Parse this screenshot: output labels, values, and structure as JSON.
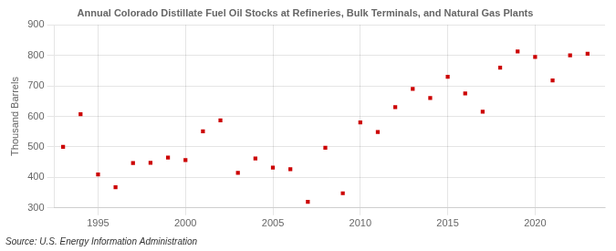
{
  "chart_data": {
    "type": "scatter",
    "title": "Annual Colorado Distillate Fuel Oil Stocks at Refineries, Bulk Terminals, and Natural Gas Plants",
    "ylabel": "Thousand Barrels",
    "source": "Source: U.S. Energy Information Administration",
    "x": [
      1993,
      1994,
      1995,
      1996,
      1997,
      1998,
      1999,
      2000,
      2001,
      2002,
      2003,
      2004,
      2005,
      2006,
      2007,
      2008,
      2009,
      2010,
      2011,
      2012,
      2013,
      2014,
      2015,
      2016,
      2017,
      2018,
      2019,
      2020,
      2021,
      2022,
      2023
    ],
    "values": [
      500,
      607,
      410,
      368,
      447,
      448,
      465,
      457,
      551,
      587,
      415,
      462,
      432,
      427,
      320,
      497,
      348,
      580,
      549,
      630,
      690,
      660,
      730,
      675,
      615,
      760,
      813,
      795,
      718,
      800,
      805
    ],
    "color": "#cc0000",
    "marker": "square",
    "xlim": [
      1992.5,
      2024
    ],
    "xticks": [
      1995,
      2000,
      2005,
      2010,
      2015,
      2020
    ],
    "ylim": [
      300,
      900
    ],
    "yticks": [
      300,
      400,
      500,
      600,
      700,
      800,
      900
    ],
    "grid": true
  }
}
